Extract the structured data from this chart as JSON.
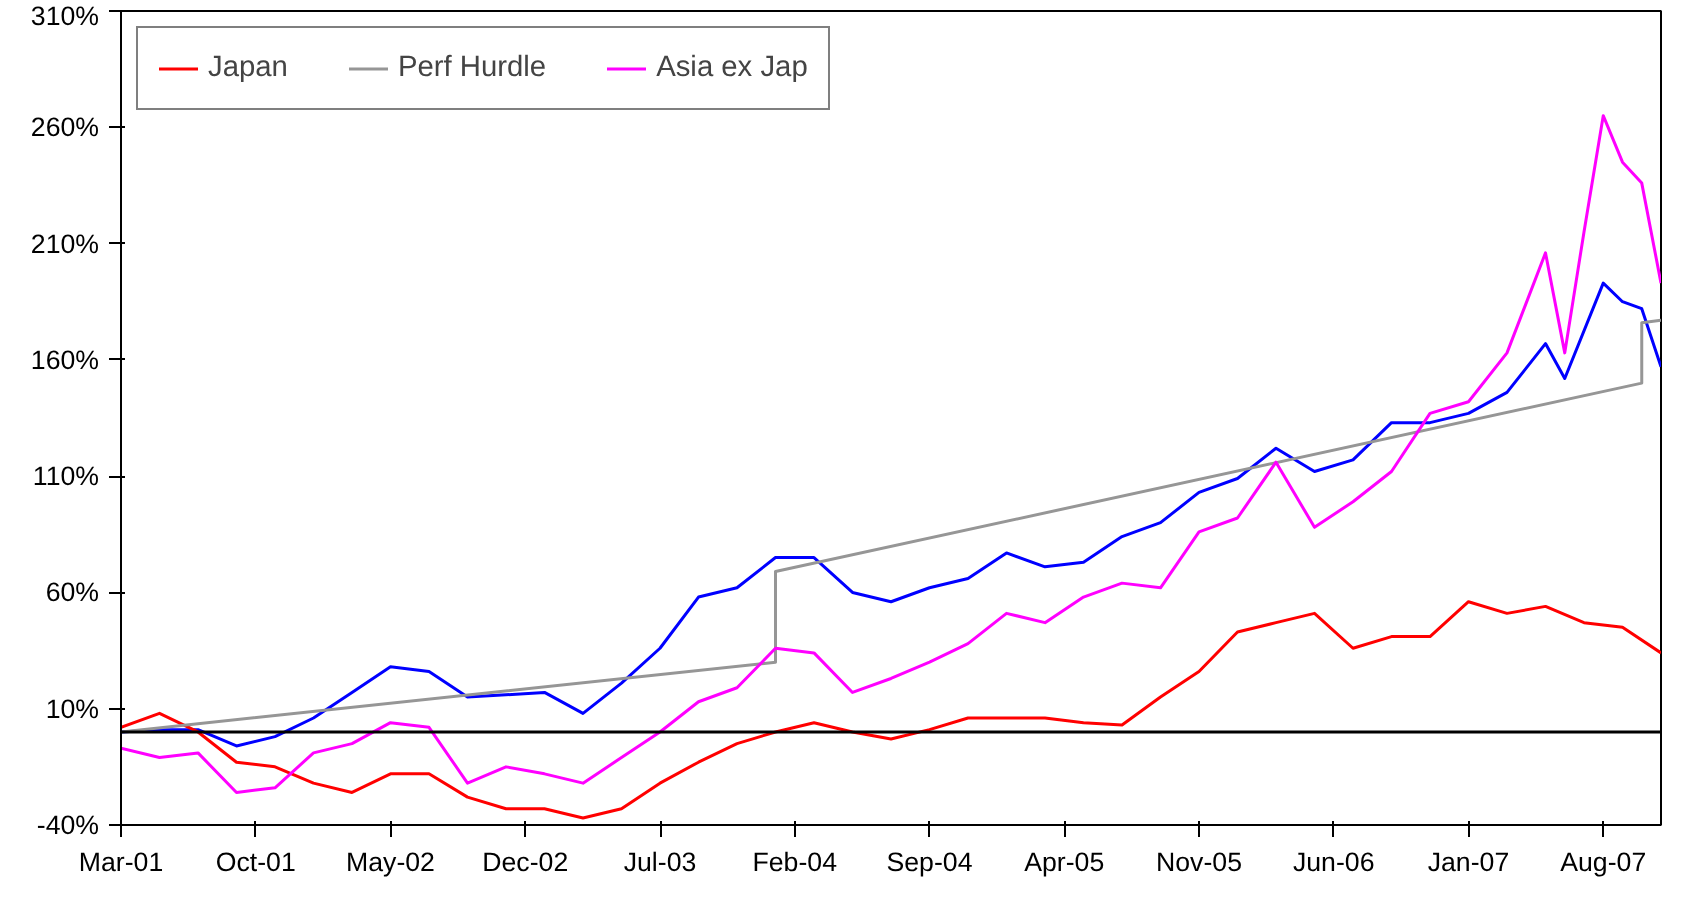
{
  "chart_data": {
    "type": "line",
    "legend": "top",
    "grid": false,
    "marker": "none",
    "line_style": "solid",
    "xlim": [
      "2001-03",
      "2007-11"
    ],
    "xticks": [
      {
        "value": "2001-03",
        "label": "Mar-01"
      },
      {
        "value": "2001-10",
        "label": "Oct-01"
      },
      {
        "value": "2002-05",
        "label": "May-02"
      },
      {
        "value": "2002-12",
        "label": "Dec-02"
      },
      {
        "value": "2003-07",
        "label": "Jul-03"
      },
      {
        "value": "2004-02",
        "label": "Feb-04"
      },
      {
        "value": "2004-09",
        "label": "Sep-04"
      },
      {
        "value": "2005-04",
        "label": "Apr-05"
      },
      {
        "value": "2005-11",
        "label": "Nov-05"
      },
      {
        "value": "2006-06",
        "label": "Jun-06"
      },
      {
        "value": "2007-01",
        "label": "Jan-07"
      },
      {
        "value": "2007-08",
        "label": "Aug-07"
      }
    ],
    "ylim": [
      -40,
      310
    ],
    "yticks": [
      {
        "value": -40,
        "label": "-40%"
      },
      {
        "value": 10,
        "label": "10%"
      },
      {
        "value": 60,
        "label": "60%"
      },
      {
        "value": 110,
        "label": "110%"
      },
      {
        "value": 160,
        "label": "160%"
      },
      {
        "value": 210,
        "label": "210%"
      },
      {
        "value": 260,
        "label": "260%"
      },
      {
        "value": 310,
        "label": "310%"
      }
    ],
    "ref_lines": [
      {
        "axis": "y",
        "value": 0,
        "color": "#000000"
      }
    ],
    "series": [
      {
        "color": "#0000ff",
        "x": [
          "2001-03",
          "2001-05",
          "2001-07",
          "2001-09",
          "2001-11",
          "2002-01",
          "2002-03",
          "2002-05",
          "2002-07",
          "2002-09",
          "2002-11",
          "2003-01",
          "2003-03",
          "2003-05",
          "2003-07",
          "2003-09",
          "2003-11",
          "2004-01",
          "2004-03",
          "2004-05",
          "2004-07",
          "2004-09",
          "2004-11",
          "2005-01",
          "2005-03",
          "2005-05",
          "2005-07",
          "2005-09",
          "2005-11",
          "2006-01",
          "2006-03",
          "2006-05",
          "2006-07",
          "2006-09",
          "2006-11",
          "2007-01",
          "2007-03",
          "2007-05",
          "2007-06",
          "2007-08",
          "2007-09",
          "2007-10",
          "2007-11"
        ],
        "values": [
          0,
          1,
          1,
          -6,
          -2,
          6,
          17,
          28,
          26,
          15,
          16,
          17,
          8,
          21,
          36,
          58,
          62,
          75,
          75,
          60,
          56,
          62,
          66,
          77,
          71,
          73,
          84,
          90,
          103,
          109,
          122,
          112,
          117,
          133,
          133,
          137,
          146,
          167,
          152,
          193,
          185,
          182,
          157
        ]
      },
      {
        "name": "Japan",
        "color": "#ff0000",
        "x": [
          "2001-03",
          "2001-05",
          "2001-07",
          "2001-09",
          "2001-11",
          "2002-01",
          "2002-03",
          "2002-05",
          "2002-07",
          "2002-09",
          "2002-11",
          "2003-01",
          "2003-03",
          "2003-05",
          "2003-07",
          "2003-09",
          "2003-11",
          "2004-01",
          "2004-03",
          "2004-05",
          "2004-07",
          "2004-09",
          "2004-11",
          "2005-01",
          "2005-03",
          "2005-05",
          "2005-07",
          "2005-09",
          "2005-11",
          "2006-01",
          "2006-03",
          "2006-05",
          "2006-07",
          "2006-09",
          "2006-11",
          "2007-01",
          "2007-03",
          "2007-05",
          "2007-07",
          "2007-09",
          "2007-11"
        ],
        "values": [
          2,
          8,
          0,
          -13,
          -15,
          -22,
          -26,
          -18,
          -18,
          -28,
          -33,
          -33,
          -37,
          -33,
          -22,
          -13,
          -5,
          0,
          4,
          0,
          -3,
          1,
          6,
          6,
          6,
          4,
          3,
          15,
          26,
          43,
          47,
          51,
          36,
          41,
          41,
          56,
          51,
          54,
          47,
          45,
          34
        ]
      },
      {
        "name": "Perf Hurdle",
        "color": "#969696",
        "x": [
          "2001-03",
          "2004-01",
          "2004-01",
          "2007-10",
          "2007-10",
          "2007-11"
        ],
        "values": [
          0,
          30,
          69,
          150,
          176,
          177
        ]
      },
      {
        "name": "Asia ex Jap",
        "color": "#ff00ff",
        "x": [
          "2001-03",
          "2001-05",
          "2001-07",
          "2001-09",
          "2001-11",
          "2002-01",
          "2002-03",
          "2002-05",
          "2002-07",
          "2002-09",
          "2002-11",
          "2003-01",
          "2003-03",
          "2003-05",
          "2003-07",
          "2003-09",
          "2003-11",
          "2004-01",
          "2004-03",
          "2004-05",
          "2004-07",
          "2004-09",
          "2004-11",
          "2005-01",
          "2005-03",
          "2005-05",
          "2005-07",
          "2005-09",
          "2005-11",
          "2006-01",
          "2006-03",
          "2006-05",
          "2006-07",
          "2006-09",
          "2006-11",
          "2007-01",
          "2007-03",
          "2007-05",
          "2007-06",
          "2007-07",
          "2007-08",
          "2007-09",
          "2007-10",
          "2007-11"
        ],
        "values": [
          -7,
          -11,
          -9,
          -26,
          -24,
          -9,
          -5,
          4,
          2,
          -22,
          -15,
          -18,
          -22,
          -11,
          0,
          13,
          19,
          36,
          34,
          17,
          23,
          30,
          38,
          51,
          47,
          58,
          64,
          62,
          86,
          92,
          116,
          88,
          99,
          112,
          137,
          142,
          163,
          206,
          163,
          215,
          265,
          245,
          236,
          193
        ]
      }
    ]
  }
}
